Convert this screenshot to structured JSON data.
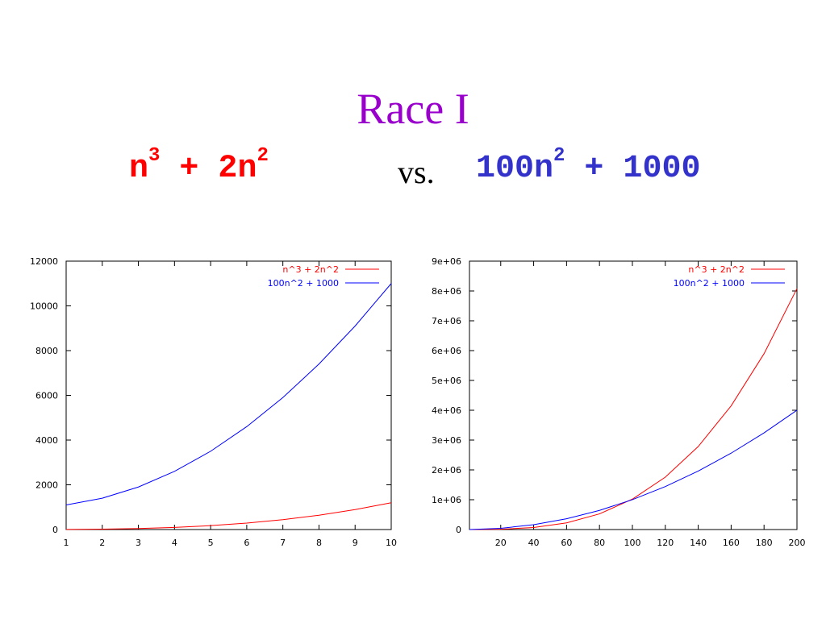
{
  "slide": {
    "title": "Race I",
    "left_expr": {
      "base": "n",
      "exp1": "3",
      "mid": " + 2n",
      "exp2": "2"
    },
    "vs": "vs.",
    "right_expr": {
      "base": "100n",
      "exp1": "2",
      "tail": " + 1000"
    },
    "colors": {
      "title": "#9900cc",
      "left": "#ff0000",
      "right": "#3333cc"
    }
  },
  "chart_data": [
    {
      "type": "line",
      "xlim": [
        1,
        10
      ],
      "ylim": [
        0,
        12000
      ],
      "xticks": [
        "1",
        "2",
        "3",
        "4",
        "5",
        "6",
        "7",
        "8",
        "9",
        "10"
      ],
      "xtick_values": [
        1,
        2,
        3,
        4,
        5,
        6,
        7,
        8,
        9,
        10
      ],
      "yticks": [
        "0",
        "2000",
        "4000",
        "6000",
        "8000",
        "10000",
        "12000"
      ],
      "ytick_values": [
        0,
        2000,
        4000,
        6000,
        8000,
        10000,
        12000
      ],
      "legend_position": "top-right",
      "grid": false,
      "series": [
        {
          "name": "n^3 + 2n^2",
          "color": "#ff0000",
          "x": [
            1,
            2,
            3,
            4,
            5,
            6,
            7,
            8,
            9,
            10
          ],
          "values": [
            3,
            16,
            45,
            96,
            175,
            288,
            441,
            640,
            891,
            1200
          ]
        },
        {
          "name": "100n^2 + 1000",
          "color": "#0000ff",
          "x": [
            1,
            2,
            3,
            4,
            5,
            6,
            7,
            8,
            9,
            10
          ],
          "values": [
            1100,
            1400,
            1900,
            2600,
            3500,
            4600,
            5900,
            7400,
            9100,
            11000
          ]
        }
      ]
    },
    {
      "type": "line",
      "xlim": [
        1,
        200
      ],
      "ylim": [
        0,
        9000000
      ],
      "xticks": [
        "20",
        "40",
        "60",
        "80",
        "100",
        "120",
        "140",
        "160",
        "180",
        "200"
      ],
      "xtick_values": [
        20,
        40,
        60,
        80,
        100,
        120,
        140,
        160,
        180,
        200
      ],
      "yticks": [
        "0",
        "1e+06",
        "2e+06",
        "3e+06",
        "4e+06",
        "5e+06",
        "6e+06",
        "7e+06",
        "8e+06",
        "9e+06"
      ],
      "ytick_values": [
        0,
        1000000,
        2000000,
        3000000,
        4000000,
        5000000,
        6000000,
        7000000,
        8000000,
        9000000
      ],
      "legend_position": "top-right",
      "grid": false,
      "series": [
        {
          "name": "n^3 + 2n^2",
          "color": "#ff0000",
          "x": [
            1,
            20,
            40,
            60,
            80,
            100,
            120,
            140,
            160,
            180,
            200
          ],
          "values": [
            3,
            8800,
            67200,
            223200,
            524800,
            1020000,
            1756800,
            2783200,
            4147200,
            5896800,
            8080000
          ]
        },
        {
          "name": "100n^2 + 1000",
          "color": "#0000ff",
          "x": [
            1,
            20,
            40,
            60,
            80,
            100,
            120,
            140,
            160,
            180,
            200
          ],
          "values": [
            1100,
            41000,
            161000,
            361000,
            641000,
            1001000,
            1441000,
            1961000,
            2561000,
            3241000,
            4001000
          ]
        }
      ]
    }
  ]
}
